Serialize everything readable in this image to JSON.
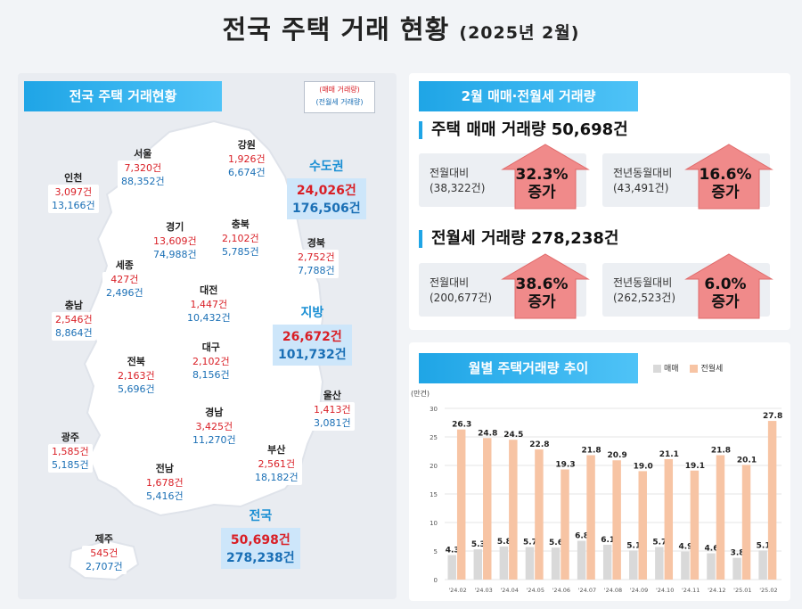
{
  "title": "전국 주택 거래 현황",
  "title_sub": "(2025년 2월)",
  "left": {
    "ribbon": "전국 주택 거래현황",
    "legend_red": "(매매 거래량)",
    "legend_blue": "(전월세 거래량)",
    "regions": [
      {
        "key": "seoul",
        "name": "서울",
        "sale": "7,320건",
        "rent": "88,352건"
      },
      {
        "key": "incheon",
        "name": "인천",
        "sale": "3,097건",
        "rent": "13,166건"
      },
      {
        "key": "gangwon",
        "name": "강원",
        "sale": "1,926건",
        "rent": "6,674건"
      },
      {
        "key": "gyeonggi",
        "name": "경기",
        "sale": "13,609건",
        "rent": "74,988건"
      },
      {
        "key": "chungbuk",
        "name": "충북",
        "sale": "2,102건",
        "rent": "5,785건"
      },
      {
        "key": "gyeongbuk",
        "name": "경북",
        "sale": "2,752건",
        "rent": "7,788건"
      },
      {
        "key": "sejong",
        "name": "세종",
        "sale": "427건",
        "rent": "2,496건"
      },
      {
        "key": "chungnam",
        "name": "충남",
        "sale": "2,546건",
        "rent": "8,864건"
      },
      {
        "key": "daejeon",
        "name": "대전",
        "sale": "1,447건",
        "rent": "10,432건"
      },
      {
        "key": "jeonbuk",
        "name": "전북",
        "sale": "2,163건",
        "rent": "5,696건"
      },
      {
        "key": "daegu",
        "name": "대구",
        "sale": "2,102건",
        "rent": "8,156건"
      },
      {
        "key": "ulsan",
        "name": "울산",
        "sale": "1,413건",
        "rent": "3,081건"
      },
      {
        "key": "gyeongnam",
        "name": "경남",
        "sale": "3,425건",
        "rent": "11,270건"
      },
      {
        "key": "gwangju",
        "name": "광주",
        "sale": "1,585건",
        "rent": "5,185건"
      },
      {
        "key": "busan",
        "name": "부산",
        "sale": "2,561건",
        "rent": "18,182건"
      },
      {
        "key": "jeonnam",
        "name": "전남",
        "sale": "1,678건",
        "rent": "5,416건"
      },
      {
        "key": "jeju",
        "name": "제주",
        "sale": "545건",
        "rent": "2,707건"
      }
    ],
    "capital": {
      "name": "수도권",
      "sale": "24,026건",
      "rent": "176,506건"
    },
    "local": {
      "name": "지방",
      "sale": "26,672건",
      "rent": "101,732건"
    },
    "nation": {
      "name": "전국",
      "sale": "50,698건",
      "rent": "278,238건"
    }
  },
  "summary": {
    "ribbon": "2월 매매·전월세 거래량",
    "sale_heading": "주택 매매 거래량 50,698건",
    "rent_heading": "전월세 거래량 278,238건",
    "cards": [
      {
        "label1": "전월대비",
        "label2": "(38,322건)",
        "pct": "32.3%",
        "dir": "증가"
      },
      {
        "label1": "전년동월대비",
        "label2": "(43,491건)",
        "pct": "16.6%",
        "dir": "증가"
      },
      {
        "label1": "전월대비",
        "label2": "(200,677건)",
        "pct": "38.6%",
        "dir": "증가"
      },
      {
        "label1": "전년동월대비",
        "label2": "(262,523건)",
        "pct": "6.0%",
        "dir": "증가"
      }
    ],
    "arrow_color": "#f08a8a"
  },
  "chart_section": {
    "ribbon": "월별 주택거래량 추이",
    "legend": [
      "매매",
      "전월세"
    ]
  },
  "chart_data": {
    "type": "bar",
    "title": "월별 주택거래량 추이",
    "ylabel": "(만건)",
    "ylim": [
      0,
      30
    ],
    "yticks": [
      0,
      5,
      10,
      15,
      20,
      25,
      30
    ],
    "grid": true,
    "legend_position": "top-right",
    "categories": [
      "'24.02",
      "'24.03",
      "'24.04",
      "'24.05",
      "'24.06",
      "'24.07",
      "'24.08",
      "'24.09",
      "'24.10",
      "'24.11",
      "'24.12",
      "'25.01",
      "'25.02"
    ],
    "series": [
      {
        "name": "매매",
        "color": "#d9d9d9",
        "values": [
          4.3,
          5.3,
          5.8,
          5.7,
          5.6,
          6.8,
          6.1,
          5.1,
          5.7,
          4.9,
          4.6,
          3.8,
          5.1
        ]
      },
      {
        "name": "전월세",
        "color": "#f7c4a4",
        "values": [
          26.3,
          24.8,
          24.5,
          22.8,
          19.3,
          21.8,
          20.9,
          19.0,
          21.1,
          19.1,
          21.8,
          20.1,
          27.8
        ]
      }
    ]
  }
}
